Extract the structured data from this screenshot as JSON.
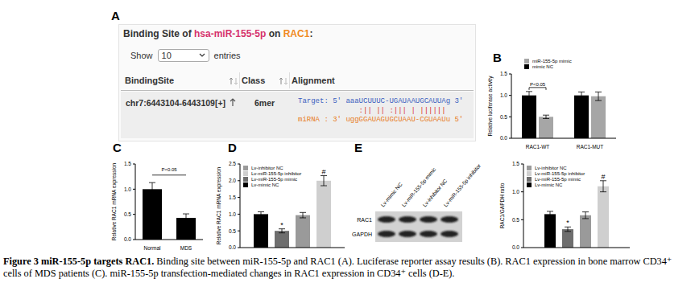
{
  "binding_site": {
    "panel": "A",
    "title": {
      "prefix": "Binding Site of ",
      "mirna": "hsa-miR-155-5p",
      "middle": " on ",
      "gene": "RAC1",
      "suffix": ":"
    },
    "show": {
      "before": "Show",
      "value": "10",
      "after": "entries"
    },
    "headers": [
      "BindingSite",
      "Class",
      "Alignment"
    ],
    "rows": [
      {
        "site": "chr7:6443104-6443109[+]",
        "class": "6mer",
        "alignment": [
          "Target: 5' aaaUCUUUC-UGAUAAUGCAUUAg 3'",
          "              :|| || :||| | ||||||",
          "miRNA : 3' uggGGAUAGUGCUAAU-CGUAAUu 5'"
        ]
      }
    ]
  },
  "blot": {
    "panel": "E",
    "lanes": [
      "Lv-mimic NC",
      "Lv-miR-155-5p mimic",
      "Lv-inhibitor NC",
      "Lv-miR-155-5p inhibitor"
    ],
    "bands": [
      "RAC1",
      "GAPDH"
    ]
  },
  "chart_data": [
    {
      "panel": "B",
      "type": "bar",
      "categories": [
        "RAC1-WT",
        "RAC1-MUT"
      ],
      "series": [
        {
          "name": "mimic NC",
          "color": "#000000",
          "values": [
            1.0,
            1.0
          ],
          "errors": [
            0.09,
            0.08
          ]
        },
        {
          "name": "miR-155-5p mimic",
          "color": "#a6a6a6",
          "values": [
            0.5,
            0.98
          ],
          "errors": [
            0.04,
            0.1
          ]
        }
      ],
      "y_label": "Relative luciferase activity",
      "ylim": [
        0,
        1.5
      ],
      "yticks": [
        {
          "value": 0,
          "label": "0.0"
        },
        0.5,
        {
          "value": 1,
          "label": "1.0"
        },
        1.5
      ],
      "legend": "upper left",
      "annotations": [
        {
          "text": "P<0.05",
          "category": "RAC1-WT",
          "between": [
            "mimic NC",
            "miR-155-5p mimic"
          ]
        }
      ]
    },
    {
      "panel": "C",
      "type": "bar",
      "categories": [
        "Normal",
        "MDS"
      ],
      "values": [
        1.0,
        0.43
      ],
      "errors": [
        0.13,
        0.08
      ],
      "color": "#000000",
      "y_label": "Relative RAC1 mRNA expression",
      "ylim": [
        0,
        1.5
      ],
      "yticks": [
        {
          "value": 0,
          "label": "0.0"
        },
        0.5,
        {
          "value": 1,
          "label": "1.0"
        },
        1.5
      ],
      "annotations": [
        {
          "text": "P<0.05",
          "between": [
            "Normal",
            "MDS"
          ]
        }
      ]
    },
    {
      "panel": "D",
      "type": "bar",
      "categories": [
        null
      ],
      "tick_labels": "y",
      "series": [
        {
          "name": "Lv-mimic NC",
          "color": "#000000",
          "values": [
            1.0
          ],
          "errors": [
            0.07
          ]
        },
        {
          "name": "Lv-miR-155-5p mimic",
          "color": "#6e6e6e",
          "values": [
            0.5
          ],
          "errors": [
            0.06
          ],
          "annotation": "*"
        },
        {
          "name": "Lv-inhibitor NC",
          "color": "#9a9a9a",
          "values": [
            0.97
          ],
          "errors": [
            0.08
          ]
        },
        {
          "name": "Lv-miR-155-5p inhibitor",
          "color": "#cfcfcf",
          "values": [
            2.0
          ],
          "errors": [
            0.15
          ],
          "annotation": "#"
        }
      ],
      "y_label": "Relative RAC1 mRNA expression",
      "ylim": [
        0,
        2.5
      ],
      "yticks": [
        {
          "value": 0,
          "label": "0.0"
        },
        0.5,
        {
          "value": 1,
          "label": "1.0"
        },
        1.5,
        {
          "value": 2,
          "label": "2.0"
        },
        2.5
      ],
      "legend": "upper left"
    },
    {
      "type": "bar",
      "categories": [
        null
      ],
      "tick_labels": "y",
      "series": [
        {
          "name": "Lv-mimic NC",
          "color": "#000000",
          "values": [
            0.6
          ],
          "errors": [
            0.05
          ]
        },
        {
          "name": "Lv-miR-155-5p mimic",
          "color": "#6e6e6e",
          "values": [
            0.33
          ],
          "errors": [
            0.04
          ],
          "annotation": "*"
        },
        {
          "name": "Lv-inhibitor NC",
          "color": "#9a9a9a",
          "values": [
            0.58
          ],
          "errors": [
            0.06
          ]
        },
        {
          "name": "Lv-miR-155-5p inhibitor",
          "color": "#cfcfcf",
          "values": [
            1.1
          ],
          "errors": [
            0.1
          ],
          "annotation": "#"
        }
      ],
      "y_label": "RAC1/GAPDH ratio",
      "ylim": [
        0,
        1.5
      ],
      "yticks": [
        {
          "value": 0,
          "label": "0.0"
        },
        0.5,
        {
          "value": 1,
          "label": "1.0"
        },
        1.5
      ],
      "legend": "upper left"
    }
  ],
  "caption": {
    "title": "Figure 3 miR-155-5p targets RAC1.",
    "text": "Binding site between miR-155-5p and RAC1 (A). Luciferase reporter assay results (B). RAC1 expression in bone marrow CD34⁺ cells of MDS patients (C). miR-155-5p transfection-mediated changes in RAC1 expression in CD34⁺ cells (D-E)."
  }
}
